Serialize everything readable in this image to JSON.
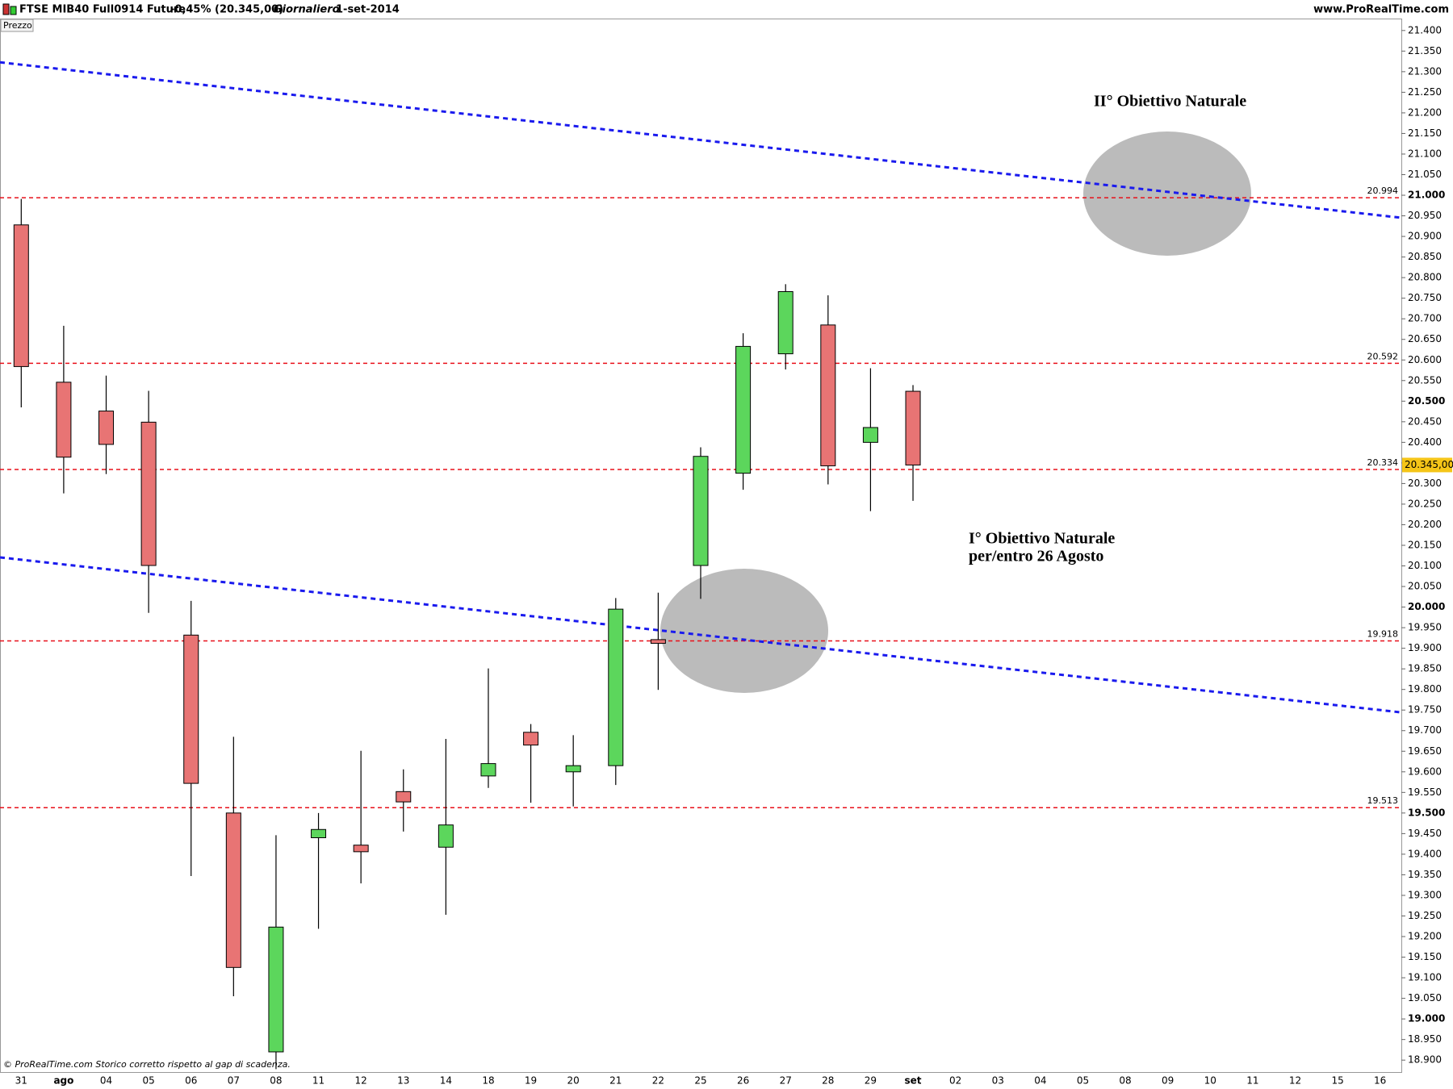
{
  "chart_data": {
    "type": "candlestick",
    "title": "FTSE MIB40 Full0914 Future",
    "change": "-0,45% (20.345,00)",
    "timeframe": "Giornaliero",
    "date": "1-set-2014",
    "source": "www.ProRealTime.com",
    "panel_label": "Prezzo",
    "footer": "© ProRealTime.com  Storico corretto rispetto al gap di scadenza.",
    "categories": [
      "31",
      "ago",
      "04",
      "05",
      "06",
      "07",
      "08",
      "11",
      "12",
      "13",
      "14",
      "18",
      "19",
      "20",
      "21",
      "22",
      "25",
      "26",
      "27",
      "28",
      "29",
      "set",
      "02",
      "03",
      "04",
      "05",
      "08",
      "09",
      "10",
      "11",
      "12",
      "15",
      "16"
    ],
    "open": [
      20928,
      20546,
      20476,
      20449,
      19932,
      19500,
      18920,
      19440,
      19422,
      19552,
      19417,
      19590,
      19696,
      19600,
      19615,
      19921,
      20101,
      20325,
      20615,
      20685,
      20400,
      20524,
      null,
      null,
      null,
      null,
      null,
      null,
      null,
      null,
      null,
      null,
      null
    ],
    "high": [
      20991,
      20683,
      20562,
      20525,
      20015,
      19685,
      19446,
      19500,
      19651,
      19606,
      19680,
      19851,
      19716,
      19689,
      20022,
      20035,
      20388,
      20665,
      20784,
      20757,
      20580,
      20539,
      null,
      null,
      null,
      null,
      null,
      null,
      null,
      null,
      null,
      null,
      null
    ],
    "low": [
      20485,
      20276,
      20323,
      19986,
      19347,
      19055,
      18878,
      19219,
      19329,
      19455,
      19253,
      19561,
      19525,
      19516,
      19568,
      19799,
      20020,
      20285,
      20577,
      20298,
      20233,
      20258,
      null,
      null,
      null,
      null,
      null,
      null,
      null,
      null,
      null,
      null,
      null
    ],
    "close": [
      20584,
      20364,
      20395,
      20101,
      19572,
      19125,
      19223,
      19460,
      19406,
      19527,
      19471,
      19620,
      19665,
      19615,
      19995,
      19912,
      20366,
      20633,
      20766,
      20343,
      20436,
      20345,
      null,
      null,
      null,
      null,
      null,
      null,
      null,
      null,
      null,
      null,
      null
    ],
    "up_color": "#5cd65c",
    "down_color": "#e87474",
    "ylim": [
      18871,
      21429
    ],
    "yticks": [
      {
        "value": 18900,
        "label": "18.900"
      },
      {
        "value": 18950,
        "label": "18.950"
      },
      {
        "value": 19000,
        "label": "19.000"
      },
      {
        "value": 19050,
        "label": "19.050"
      },
      {
        "value": 19100,
        "label": "19.100"
      },
      {
        "value": 19150,
        "label": "19.150"
      },
      {
        "value": 19200,
        "label": "19.200"
      },
      {
        "value": 19250,
        "label": "19.250"
      },
      {
        "value": 19300,
        "label": "19.300"
      },
      {
        "value": 19350,
        "label": "19.350"
      },
      {
        "value": 19400,
        "label": "19.400"
      },
      {
        "value": 19450,
        "label": "19.450"
      },
      {
        "value": 19500,
        "label": "19.500"
      },
      {
        "value": 19550,
        "label": "19.550"
      },
      {
        "value": 19600,
        "label": "19.600"
      },
      {
        "value": 19650,
        "label": "19.650"
      },
      {
        "value": 19700,
        "label": "19.700"
      },
      {
        "value": 19750,
        "label": "19.750"
      },
      {
        "value": 19800,
        "label": "19.800"
      },
      {
        "value": 19850,
        "label": "19.850"
      },
      {
        "value": 19900,
        "label": "19.900"
      },
      {
        "value": 19950,
        "label": "19.950"
      },
      {
        "value": 20000,
        "label": "20.000"
      },
      {
        "value": 20050,
        "label": "20.050"
      },
      {
        "value": 20100,
        "label": "20.100"
      },
      {
        "value": 20150,
        "label": "20.150"
      },
      {
        "value": 20200,
        "label": "20.200"
      },
      {
        "value": 20250,
        "label": "20.250"
      },
      {
        "value": 20300,
        "label": "20.300"
      },
      {
        "value": 20350,
        "label": "20.350"
      },
      {
        "value": 20400,
        "label": "20.400"
      },
      {
        "value": 20450,
        "label": "20.450"
      },
      {
        "value": 20500,
        "label": "20.500"
      },
      {
        "value": 20550,
        "label": "20.550"
      },
      {
        "value": 20600,
        "label": "20.600"
      },
      {
        "value": 20650,
        "label": "20.650"
      },
      {
        "value": 20700,
        "label": "20.700"
      },
      {
        "value": 20750,
        "label": "20.750"
      },
      {
        "value": 20800,
        "label": "20.800"
      },
      {
        "value": 20850,
        "label": "20.850"
      },
      {
        "value": 20900,
        "label": "20.900"
      },
      {
        "value": 20950,
        "label": "20.950"
      },
      {
        "value": 21000,
        "label": "21.000"
      },
      {
        "value": 21050,
        "label": "21.050"
      },
      {
        "value": 21100,
        "label": "21.100"
      },
      {
        "value": 21150,
        "label": "21.150"
      },
      {
        "value": 21200,
        "label": "21.200"
      },
      {
        "value": 21250,
        "label": "21.250"
      },
      {
        "value": 21300,
        "label": "21.300"
      },
      {
        "value": 21350,
        "label": "21.350"
      },
      {
        "value": 21400,
        "label": "21.400"
      }
    ],
    "last_price": {
      "value": 20345,
      "label": "20.345,00"
    },
    "levels": [
      {
        "value": 20994,
        "label": "20.994"
      },
      {
        "value": 20592,
        "label": "20.592"
      },
      {
        "value": 20334,
        "label": "20.334"
      },
      {
        "value": 19918,
        "label": "19.918"
      },
      {
        "value": 19513,
        "label": "19.513"
      }
    ],
    "level_color": "#e8101a",
    "trendlines": [
      {
        "start": 21317,
        "end": 20951
      },
      {
        "start": 20115,
        "end": 19750
      }
    ],
    "trend_color": "#1a1aee",
    "annotations": [
      "II° Obiettivo Naturale",
      "I° Obiettivo Naturale",
      "per/entro 26 Agosto"
    ]
  }
}
